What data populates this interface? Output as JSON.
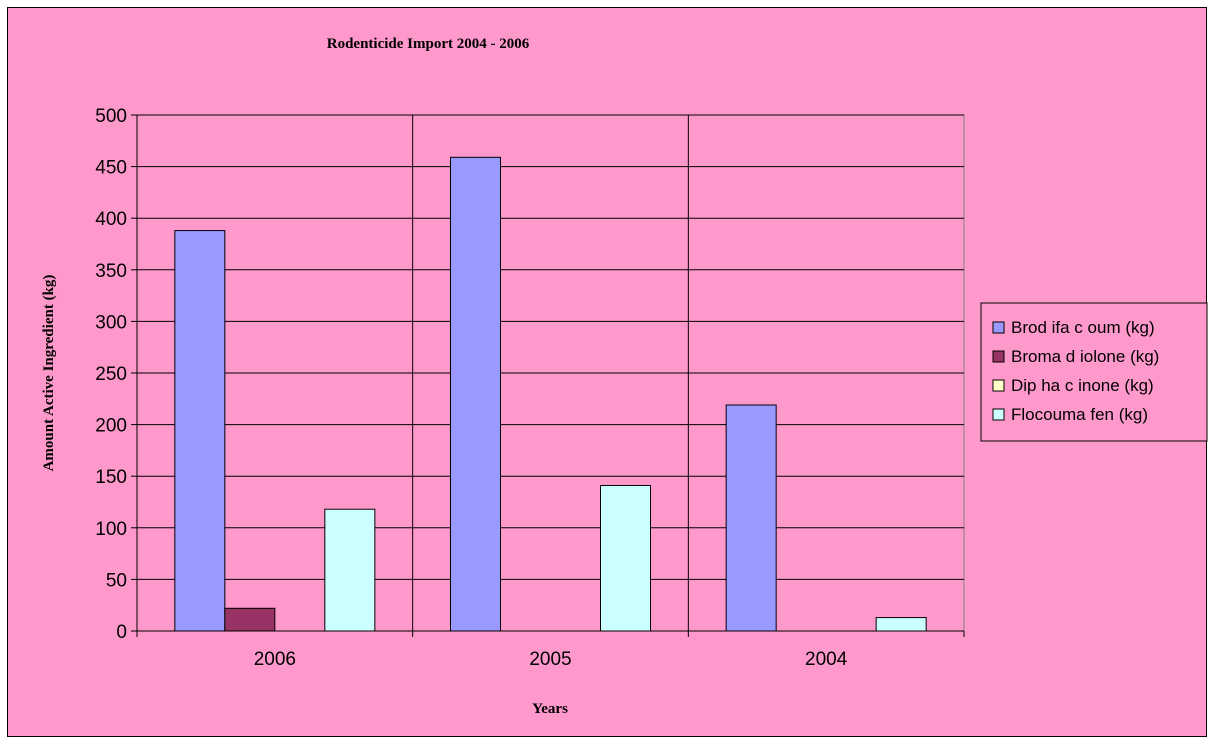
{
  "chart_data": {
    "type": "bar",
    "title": "Rodenticide Import 2004 - 2006",
    "xlabel": "Years",
    "ylabel": "Amount Active Ingredient (kg)",
    "categories": [
      "2006",
      "2005",
      "2004"
    ],
    "ylim": [
      0,
      500
    ],
    "yticks": [
      "0",
      "50",
      "100",
      "150",
      "200",
      "250",
      "300",
      "350",
      "400",
      "450",
      "500"
    ],
    "grid": true,
    "legend_position": "right",
    "series": [
      {
        "name": "Brod ifa c oum (kg)",
        "values": [
          388,
          459,
          219
        ],
        "color": "#9999ff"
      },
      {
        "name": "Broma d iolone (kg)",
        "values": [
          22,
          0,
          0
        ],
        "color": "#993366"
      },
      {
        "name": "Dip ha c inone (kg)",
        "values": [
          0,
          0,
          0
        ],
        "color": "#ffffcc"
      },
      {
        "name": "Flocouma fen (kg)",
        "values": [
          118,
          141,
          13
        ],
        "color": "#ccffff"
      }
    ]
  }
}
